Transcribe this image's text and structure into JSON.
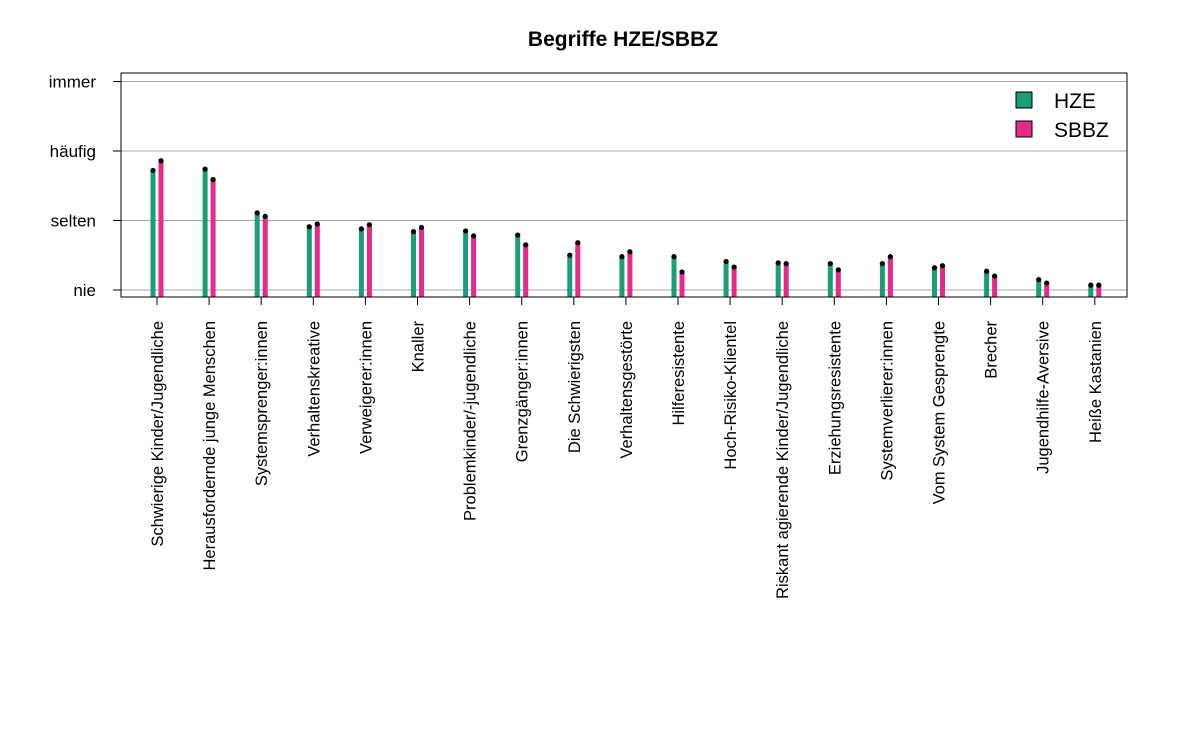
{
  "chart_data": {
    "type": "bar",
    "title": "Begriffe HZE/SBBZ",
    "xlabel": "",
    "ylabel": "",
    "ylim": [
      0,
      3
    ],
    "y_tick_values": [
      0,
      1,
      2,
      3
    ],
    "y_tick_labels": [
      "nie",
      "selten",
      "häufig",
      "immer"
    ],
    "grid": true,
    "legend_position": "top-right",
    "categories": [
      "Schwierige Kinder/Jugendliche",
      "Herausfordernde junge Menschen",
      "Systemsprenger:innen",
      "Verhaltenskreative",
      "Verweigerer:innen",
      "Knaller",
      "Problemkinder/-jugendliche",
      "Grenzgänger:innen",
      "Die Schwierigsten",
      "Verhaltensgestörte",
      "Hilferesistente",
      "Hoch-Risiko-Klientel",
      "Riskant agierende Kinder/Jugendliche",
      "Erziehungsresistente",
      "Systemverlierer:innen",
      "Vom System Gesprengte",
      "Brecher",
      "Jugendhilfe-Aversive",
      "Heiße Kastanien"
    ],
    "series": [
      {
        "name": "HZE",
        "color": "#1b9e77",
        "values": [
          1.72,
          1.74,
          1.11,
          0.91,
          0.88,
          0.84,
          0.85,
          0.79,
          0.5,
          0.48,
          0.48,
          0.41,
          0.39,
          0.38,
          0.38,
          0.32,
          0.27,
          0.15,
          0.07
        ]
      },
      {
        "name": "SBBZ",
        "color": "#e7298a",
        "values": [
          1.86,
          1.59,
          1.06,
          0.95,
          0.94,
          0.9,
          0.78,
          0.65,
          0.68,
          0.55,
          0.26,
          0.33,
          0.38,
          0.29,
          0.48,
          0.35,
          0.2,
          0.1,
          0.07
        ]
      }
    ]
  }
}
